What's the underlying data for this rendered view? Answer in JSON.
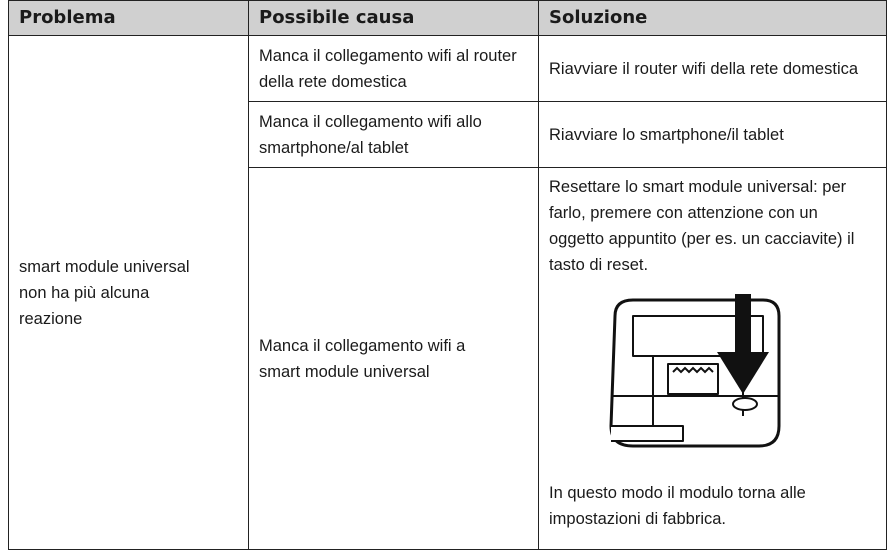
{
  "table": {
    "header": [
      "Problema",
      "Possibile causa",
      "Soluzione"
    ],
    "problem": "smart module universal non ha più alcuna reazione",
    "rows": [
      {
        "cause": "Manca il collegamento wifi al router della rete domestica",
        "solution": "Riavviare il router wifi della rete domestica"
      },
      {
        "cause": "Manca il collegamento wifi allo smartphone/al tablet",
        "solution": "Riavviare lo smartphone/il tablet"
      },
      {
        "cause": "Manca il collegamento wifi a smart module universal",
        "solution": "Resettare lo smart module universal: per farlo, premere con attenzione con un oggetto appuntito (per es. un cacciavite) il tasto di reset.",
        "solution_after": "In questo modo il modulo torna alle impostazioni di fabbrica."
      }
    ]
  }
}
